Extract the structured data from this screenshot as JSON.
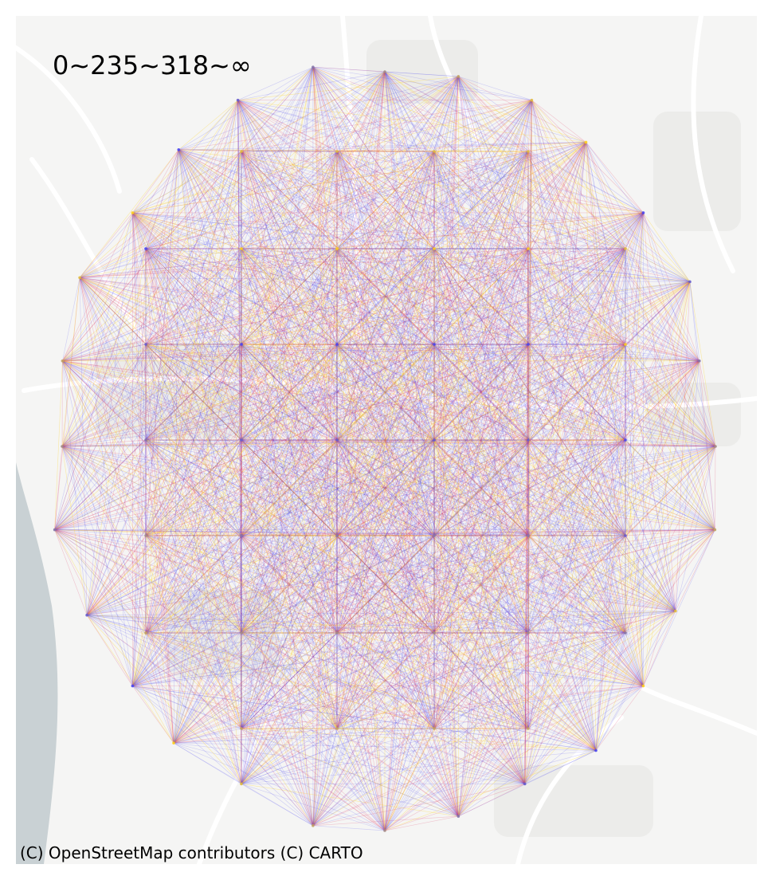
{
  "map": {
    "legend_label": "0~235~318~∞",
    "attribution": "(C) OpenStreetMap contributors (C) CARTO",
    "basemap_colors": {
      "land": "#f5f5f4",
      "roads": "#ffffff",
      "river": "#c9d1d4",
      "built_area": "#e8e8e6"
    },
    "flow_colors": {
      "low": "#4a46f0",
      "medium": "#dc2c5a",
      "high": "#ffd21e"
    }
  }
}
